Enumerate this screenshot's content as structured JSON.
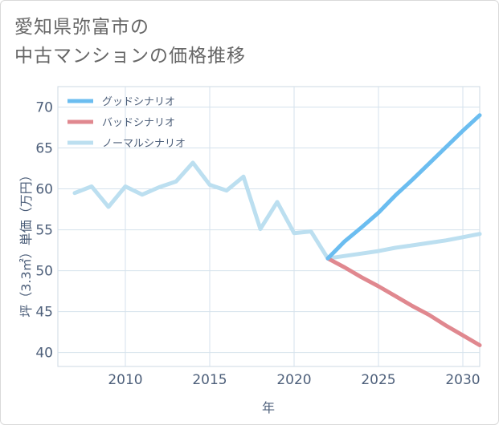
{
  "title_line1": "愛知県弥富市の",
  "title_line2": "中古マンションの価格推移",
  "chart_data": {
    "type": "line",
    "xlabel": "年",
    "ylabel": "坪（3.3㎡）単価（万円）",
    "xlim": [
      2006,
      2031
    ],
    "ylim": [
      38.3,
      72.5
    ],
    "x_ticks": [
      2010,
      2015,
      2020,
      2025,
      2030
    ],
    "y_ticks": [
      40,
      45,
      50,
      55,
      60,
      65,
      70
    ],
    "grid": true,
    "legend_position": "top-left",
    "series": [
      {
        "name": "グッドシナリオ",
        "color": "#6bbdf0",
        "x": [
          2022,
          2023,
          2024,
          2025,
          2026,
          2027,
          2028,
          2029,
          2030,
          2031
        ],
        "values": [
          51.5,
          53.6,
          55.3,
          57.1,
          59.2,
          61.1,
          63.1,
          65.1,
          67.1,
          69.0
        ]
      },
      {
        "name": "バッドシナリオ",
        "color": "#e0888f",
        "x": [
          2022,
          2023,
          2024,
          2025,
          2026,
          2027,
          2028,
          2029,
          2030,
          2031
        ],
        "values": [
          51.5,
          50.4,
          49.2,
          48.1,
          46.9,
          45.7,
          44.6,
          43.3,
          42.1,
          40.9
        ]
      },
      {
        "name": "ノーマルシナリオ",
        "color": "#bcdff0",
        "x": [
          2007,
          2008,
          2009,
          2010,
          2011,
          2012,
          2013,
          2014,
          2015,
          2016,
          2017,
          2018,
          2019,
          2020,
          2021,
          2022,
          2023,
          2024,
          2025,
          2026,
          2027,
          2028,
          2029,
          2030,
          2031
        ],
        "values": [
          59.5,
          60.3,
          57.8,
          60.3,
          59.3,
          60.2,
          60.9,
          63.2,
          60.5,
          59.8,
          61.5,
          55.1,
          58.4,
          54.6,
          54.8,
          51.5,
          51.8,
          52.1,
          52.4,
          52.8,
          53.1,
          53.4,
          53.7,
          54.1,
          54.5
        ]
      }
    ]
  }
}
